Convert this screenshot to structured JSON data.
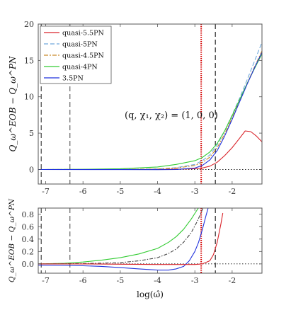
{
  "chart_data": [
    {
      "type": "line",
      "panel": "top",
      "ylabel": "Q_ω^EOB − Q_ω^PN",
      "xlabel": "",
      "xlim": [
        -7.2,
        -1.2
      ],
      "ylim": [
        -2,
        20
      ],
      "xticks": [
        -7,
        -6,
        -5,
        -4,
        -3,
        -2
      ],
      "yticks": [
        0,
        5,
        10,
        15,
        20
      ],
      "annotation": "(q, χ₁, χ₂) = (1, 0, 0)",
      "legend_position": "top-left",
      "vlines": [
        {
          "x": -7.12,
          "style": "dashed",
          "color": "#333333"
        },
        {
          "x": -6.35,
          "style": "dashed",
          "color": "#555555"
        },
        {
          "x": -2.83,
          "style": "dotted",
          "color": "#d40000"
        },
        {
          "x": -2.45,
          "style": "dashed",
          "color": "#111111"
        }
      ],
      "hline": {
        "y": 0,
        "style": "dotted",
        "color": "#111111"
      },
      "series": [
        {
          "name": "quasi-5.5PN",
          "color": "#d9232a",
          "dash": "",
          "x": [
            -7.2,
            -5,
            -4,
            -3.5,
            -3,
            -2.8,
            -2.6,
            -2.4,
            -2.2,
            -2.0,
            -1.8,
            -1.65,
            -1.5,
            -1.35,
            -1.2
          ],
          "y": [
            0,
            0,
            0.01,
            0.03,
            0.1,
            0.2,
            0.45,
            1.0,
            1.9,
            3.0,
            4.3,
            5.3,
            5.2,
            4.6,
            3.8
          ]
        },
        {
          "name": "quasi-5PN",
          "color": "#6fa8dc",
          "dash": "6 3",
          "x": [
            -7.2,
            -5,
            -4,
            -3.5,
            -3,
            -2.8,
            -2.6,
            -2.4,
            -2.2,
            -2.0,
            -1.8,
            -1.6,
            -1.4,
            -1.2
          ],
          "y": [
            0,
            0.01,
            0.08,
            0.25,
            0.7,
            1.2,
            2.0,
            3.4,
            5.3,
            7.5,
            9.8,
            12.3,
            14.9,
            17.5
          ]
        },
        {
          "name": "quasi-4.5PN",
          "color": "#c98a2b",
          "dash": "6 2 2 2",
          "x": [
            -7.2,
            -5,
            -4,
            -3.5,
            -3,
            -2.8,
            -2.6,
            -2.4,
            -2.2,
            -2.0,
            -1.8,
            -1.6,
            -1.4,
            -1.2
          ],
          "y": [
            0,
            0.01,
            0.06,
            0.2,
            0.55,
            0.95,
            1.7,
            3.0,
            4.9,
            7.1,
            9.4,
            11.8,
            14.1,
            16.3
          ]
        },
        {
          "name": "quasi-4PN",
          "color": "#33cc33",
          "dash": "",
          "x": [
            -7.2,
            -6,
            -5,
            -4,
            -3.5,
            -3,
            -2.8,
            -2.6,
            -2.4,
            -2.2,
            -2.0,
            -1.8,
            -1.6,
            -1.4,
            -1.2
          ],
          "y": [
            0,
            0.02,
            0.1,
            0.35,
            0.7,
            1.2,
            1.65,
            2.4,
            3.6,
            5.3,
            7.4,
            9.6,
            11.8,
            13.9,
            15.9
          ]
        },
        {
          "name": "3.5PN",
          "color": "#2233dd",
          "dash": "",
          "x": [
            -7.2,
            -5,
            -4,
            -3.5,
            -3,
            -2.8,
            -2.6,
            -2.4,
            -2.2,
            -2.0,
            -1.8,
            -1.6,
            -1.4,
            -1.2
          ],
          "y": [
            0,
            -0.01,
            -0.02,
            0.0,
            0.2,
            0.55,
            1.3,
            2.6,
            4.6,
            6.9,
            9.3,
            11.7,
            14.0,
            16.1
          ]
        }
      ]
    },
    {
      "type": "line",
      "panel": "bottom",
      "ylabel": "Q_ω^EOB − Q_ω^PN",
      "xlabel": "log(ω̂)",
      "xlim": [
        -7.2,
        -1.2
      ],
      "ylim": [
        -0.15,
        0.9
      ],
      "xticks": [
        -7,
        -6,
        -5,
        -4,
        -3,
        -2
      ],
      "yticks": [
        0,
        0.2,
        0.4,
        0.6,
        0.8
      ],
      "vlines": [
        {
          "x": -7.12,
          "style": "dashed",
          "color": "#333333"
        },
        {
          "x": -6.35,
          "style": "dashed",
          "color": "#555555"
        },
        {
          "x": -2.83,
          "style": "dotted",
          "color": "#d40000"
        },
        {
          "x": -2.45,
          "style": "dashed",
          "color": "#111111"
        }
      ],
      "hline": {
        "y": 0,
        "style": "dotted",
        "color": "#111111"
      },
      "series": [
        {
          "name": "quasi-4PN",
          "color": "#33cc33",
          "dash": "",
          "x": [
            -7.2,
            -6.5,
            -6,
            -5.5,
            -5,
            -4.5,
            -4,
            -3.7,
            -3.5,
            -3.3,
            -3.1,
            -2.95,
            -2.85
          ],
          "y": [
            0.0,
            0.01,
            0.03,
            0.06,
            0.1,
            0.16,
            0.25,
            0.35,
            0.44,
            0.56,
            0.72,
            0.86,
            0.95
          ]
        },
        {
          "name": "quasi-4.5PN",
          "color": "#444444",
          "dash": "5 2 1.5 2",
          "x": [
            -7.2,
            -6,
            -5,
            -4.5,
            -4,
            -3.7,
            -3.5,
            -3.3,
            -3.1,
            -2.95,
            -2.85,
            -2.75
          ],
          "y": [
            0.0,
            0.005,
            0.02,
            0.05,
            0.1,
            0.17,
            0.24,
            0.35,
            0.5,
            0.67,
            0.8,
            0.95
          ]
        },
        {
          "name": "3.5PN",
          "color": "#2233dd",
          "dash": "",
          "x": [
            -7.2,
            -6.5,
            -6,
            -5.5,
            -5,
            -4.5,
            -4,
            -3.7,
            -3.5,
            -3.3,
            -3.15,
            -3.0,
            -2.9,
            -2.8,
            -2.7,
            -2.62
          ],
          "y": [
            -0.02,
            -0.025,
            -0.03,
            -0.04,
            -0.06,
            -0.08,
            -0.1,
            -0.1,
            -0.08,
            -0.04,
            0.05,
            0.2,
            0.35,
            0.55,
            0.78,
            0.95
          ]
        },
        {
          "name": "quasi-5.5PN",
          "color": "#d9232a",
          "dash": "",
          "x": [
            -7.2,
            -6,
            -5,
            -4,
            -3.5,
            -3,
            -2.8,
            -2.6,
            -2.5,
            -2.4,
            -2.3,
            -2.25
          ],
          "y": [
            0.0,
            0.0,
            -0.005,
            -0.01,
            -0.01,
            -0.01,
            0.0,
            0.05,
            0.15,
            0.35,
            0.65,
            0.82
          ]
        }
      ]
    }
  ],
  "colors": {
    "axis": "#333333",
    "tick_text": "#333333"
  }
}
